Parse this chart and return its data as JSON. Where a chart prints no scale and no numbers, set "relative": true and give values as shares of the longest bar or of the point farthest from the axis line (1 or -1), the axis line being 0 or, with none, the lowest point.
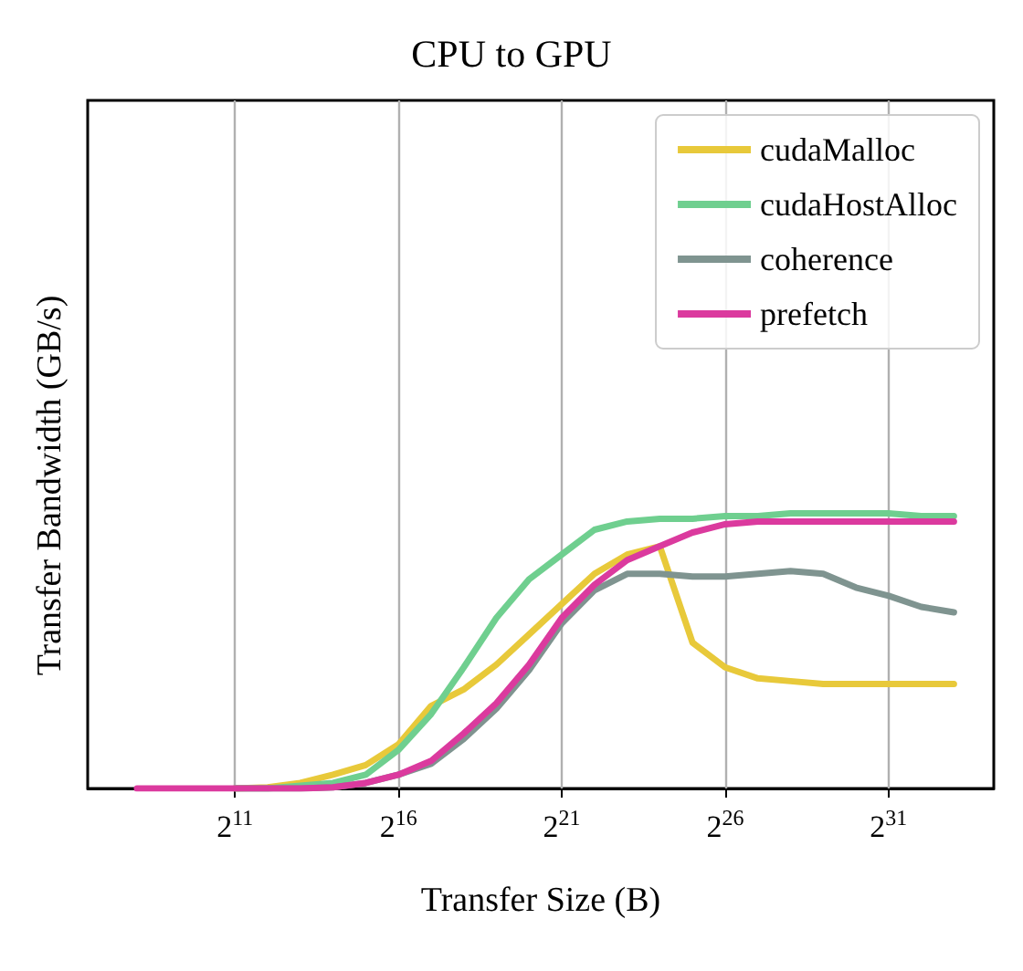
{
  "chart_data": {
    "type": "line",
    "title": "CPU to GPU",
    "xlabel": "Transfer Size (B)",
    "ylabel": "Transfer Bandwidth (GB/s)",
    "relative": true,
    "log": "x",
    "grid": "x",
    "legend": "top right",
    "marker": "none",
    "line_style": "solid",
    "x": [
      256,
      512,
      1024,
      2048,
      4096,
      8192,
      16384,
      32768,
      65536,
      131072,
      262144,
      524288,
      1048576,
      2097152,
      4194304,
      8388608,
      16777216,
      33554432,
      67108864,
      134217728,
      268435456,
      536870912,
      1073741824,
      2147483648,
      4294967296,
      8589934592
    ],
    "xlim": [
      90,
      20000000000
    ],
    "xticks": [
      {
        "value": 2048,
        "label": "2$^{11}$"
      },
      {
        "value": 65536,
        "label": "2$^{16}$"
      },
      {
        "value": 2097152,
        "label": "2$^{21}$"
      },
      {
        "value": 67108864,
        "label": "2$^{26}$"
      },
      {
        "value": 2147483648,
        "label": "2$^{31}$"
      }
    ],
    "series": [
      {
        "name": "cudaMalloc",
        "color": "#e8c93a",
        "values": [
          null,
          null,
          null,
          0,
          0.004,
          0.02,
          0.05,
          0.085,
          0.16,
          0.3,
          0.36,
          0.45,
          0.56,
          0.67,
          0.78,
          0.85,
          0.88,
          0.53,
          0.44,
          0.4,
          0.39,
          0.38,
          0.38,
          0.38,
          0.38,
          0.38
        ]
      },
      {
        "name": "cudaHostAlloc",
        "color": "#6fcf8f",
        "values": [
          null,
          null,
          null,
          0,
          0,
          0.01,
          0.02,
          0.05,
          0.14,
          0.27,
          0.44,
          0.62,
          0.76,
          0.85,
          0.94,
          0.97,
          0.98,
          0.98,
          0.99,
          0.99,
          1,
          1,
          1,
          1,
          0.99,
          0.99
        ]
      },
      {
        "name": "coherence",
        "color": "#7f9490",
        "values": [
          null,
          null,
          null,
          0,
          0,
          0,
          0.004,
          0.02,
          0.05,
          0.09,
          0.18,
          0.29,
          0.43,
          0.6,
          0.72,
          0.78,
          0.78,
          0.77,
          0.77,
          0.78,
          0.79,
          0.78,
          0.73,
          0.7,
          0.66,
          0.64
        ]
      },
      {
        "name": "prefetch",
        "color": "#db3a9e",
        "values": [
          0,
          0,
          0,
          0,
          0,
          0,
          0.004,
          0.02,
          0.05,
          0.1,
          0.2,
          0.31,
          0.45,
          0.62,
          0.74,
          0.83,
          0.88,
          0.93,
          0.96,
          0.97,
          0.97,
          0.97,
          0.97,
          0.97,
          0.97,
          0.97
        ]
      }
    ]
  }
}
